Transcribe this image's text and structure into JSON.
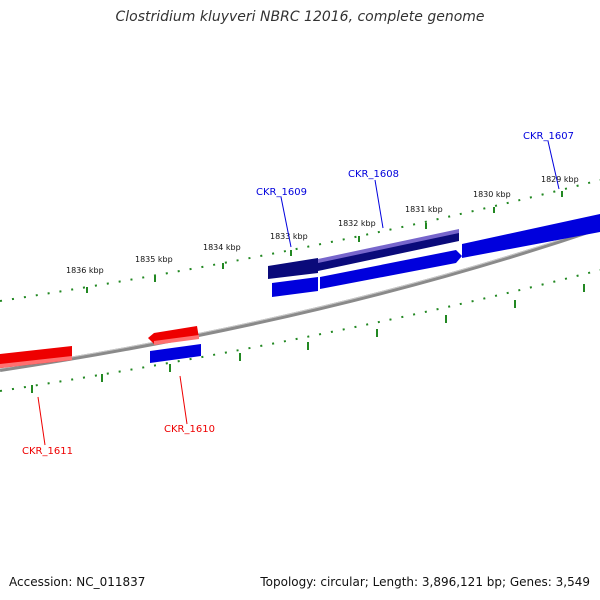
{
  "header": {
    "title": "Clostridium kluyveri NBRC 12016, complete genome"
  },
  "footer": {
    "accession": "Accession: NC_011837",
    "stats": "Topology: circular; Length: 3,896,121 bp; Genes: 3,549"
  },
  "scale_ticks": [
    "1836 kbp",
    "1835 kbp",
    "1834 kbp",
    "1833 kbp",
    "1832 kbp",
    "1831 kbp",
    "1830 kbp",
    "1829 kbp"
  ],
  "genes": [
    {
      "id": "CKR_1607",
      "strand": "+"
    },
    {
      "id": "CKR_1608",
      "strand": "+"
    },
    {
      "id": "CKR_1609",
      "strand": "+"
    },
    {
      "id": "CKR_1610",
      "strand": "-"
    },
    {
      "id": "CKR_1611",
      "strand": "-"
    }
  ],
  "colors": {
    "forward_gene": "#0000dd",
    "reverse_gene": "#ee0000",
    "backbone": "#808080",
    "ticks": "#228822"
  }
}
